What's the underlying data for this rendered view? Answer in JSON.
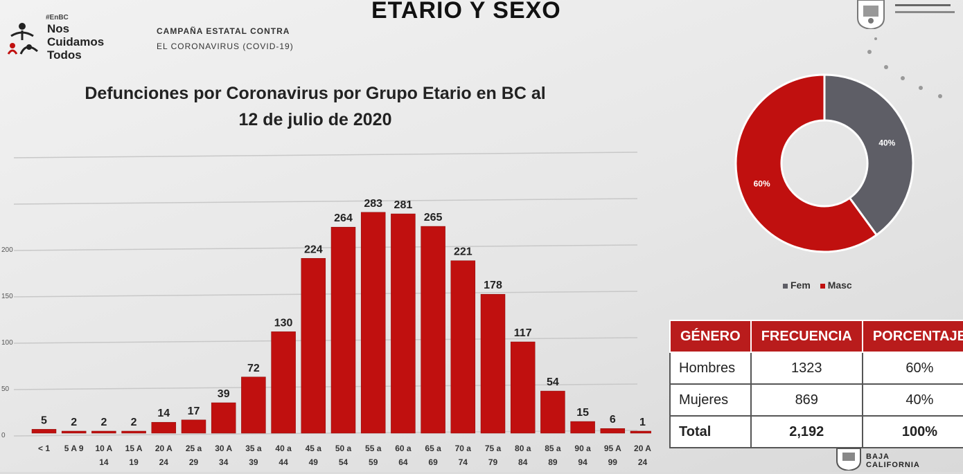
{
  "header": {
    "title": "ETARIO Y SEXO",
    "logo_hashtag": "#EnBC",
    "logo_line1": "Nos",
    "logo_line2": "Cuidamos",
    "logo_line3": "Todos",
    "campaign_line1": "CAMPAÑA ESTATAL CONTRA",
    "campaign_line2": "EL CORONAVIRUS (COVID-19)"
  },
  "chart_title_line1": "Defunciones por Coronavirus por Grupo Etario en BC al",
  "chart_title_line2": "12 de julio de 2020",
  "chart_data": [
    {
      "type": "bar",
      "title": "Defunciones por Coronavirus por Grupo Etario en BC al 12 de julio de 2020",
      "categories": [
        [
          "< 1",
          ""
        ],
        [
          "5 A 9",
          ""
        ],
        [
          "10 A",
          "14"
        ],
        [
          "15 A",
          "19"
        ],
        [
          "20 A",
          "24"
        ],
        [
          "25 a",
          "29"
        ],
        [
          "30 A",
          "34"
        ],
        [
          "35 a",
          "39"
        ],
        [
          "40 a",
          "44"
        ],
        [
          "45 a",
          "49"
        ],
        [
          "50 a",
          "54"
        ],
        [
          "55 a",
          "59"
        ],
        [
          "60 a",
          "64"
        ],
        [
          "65 a",
          "69"
        ],
        [
          "70 a",
          "74"
        ],
        [
          "75 a",
          "79"
        ],
        [
          "80 a",
          "84"
        ],
        [
          "85 a",
          "89"
        ],
        [
          "90 a",
          "94"
        ],
        [
          "95 A",
          "99"
        ],
        [
          "20 A",
          "24"
        ]
      ],
      "values": [
        5,
        2,
        2,
        2,
        14,
        17,
        39,
        72,
        130,
        224,
        264,
        283,
        281,
        265,
        221,
        178,
        117,
        54,
        15,
        6,
        1
      ],
      "color": "#c0100f",
      "ylim": [
        0,
        300
      ],
      "y_ticks": [
        "0",
        "50",
        "100",
        "150",
        "200"
      ],
      "grid": true
    },
    {
      "type": "pie",
      "categories": [
        "Fem",
        "Masc"
      ],
      "values": [
        40,
        60
      ],
      "labels": [
        "40%",
        "60%"
      ],
      "colors": [
        "#5e5e66",
        "#c0100f"
      ],
      "legend_position": "bottom"
    }
  ],
  "legend": {
    "fem": "Fem",
    "masc": "Masc"
  },
  "table": {
    "headers": [
      "GÉNERO",
      "FRECUENCIA",
      "PORCENTAJE"
    ],
    "rows": [
      [
        "Hombres",
        "1323",
        "60%"
      ],
      [
        "Mujeres",
        "869",
        "40%"
      ],
      [
        "Total",
        "2,192",
        "100%"
      ]
    ]
  },
  "footer": {
    "bc_line1": "BAJA",
    "bc_line2": "CALIFORNIA"
  }
}
